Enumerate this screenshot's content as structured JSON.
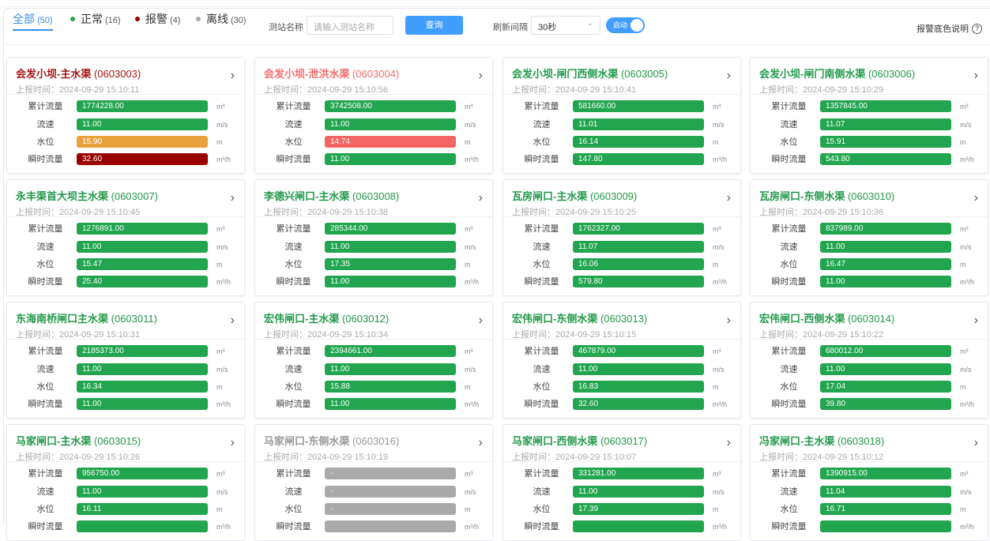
{
  "toolbar": {
    "tabs": [
      {
        "label": "全部",
        "count": "(50)",
        "active": true
      },
      {
        "label": "正常",
        "count": "(16)",
        "dot": "#21a54e"
      },
      {
        "label": "报警",
        "count": "(4)",
        "dot": "#990000"
      },
      {
        "label": "离线",
        "count": "(30)",
        "dot": "#aaaaaa"
      }
    ],
    "station_label": "测站名称",
    "station_placeholder": "请输入测站名称",
    "query_label": "查询",
    "refresh_label": "刷新间隔",
    "refresh_value": "30秒",
    "toggle_label": "启动",
    "toggle_on": true,
    "help_label": "报警底色说明",
    "help_icon": "?"
  },
  "colors": {
    "normal": "#21a54e",
    "warn": "#e9a23b",
    "alarm": "#990000",
    "alarm_light": "#f56464",
    "offline": "#aaaaaa",
    "title_normal": "#21994a",
    "title_alarm": "#a31515",
    "title_alarm_light": "#f56c6c",
    "title_offline": "#999999"
  },
  "labels": [
    "累计流量",
    "流速",
    "水位",
    "瞬时流量"
  ],
  "units": [
    "m³",
    "m/s",
    "m",
    "m³/h"
  ],
  "time_prefix": "上报时间：",
  "cards": [
    {
      "name": "会发小坝-主水渠",
      "code": "(0603003)",
      "time": "2024-09-29 15:10:11",
      "status": "alarm",
      "values": [
        "1774228.00",
        "11.00",
        "15.90",
        "32.60"
      ],
      "states": [
        "normal",
        "normal",
        "warn",
        "alarm"
      ]
    },
    {
      "name": "会发小坝-泄洪水渠",
      "code": "(0603004)",
      "time": "2024-09-29 15:10:56",
      "status": "alarm_light",
      "values": [
        "3742508.00",
        "11.00",
        "14.74",
        "11.00"
      ],
      "states": [
        "normal",
        "normal",
        "alarm_light",
        "normal"
      ]
    },
    {
      "name": "会发小坝-闸门西侧水渠",
      "code": "(0603005)",
      "time": "2024-09-29 15:10:41",
      "status": "normal",
      "values": [
        "581660.00",
        "11.01",
        "16.14",
        "147.80"
      ],
      "states": [
        "normal",
        "normal",
        "normal",
        "normal"
      ]
    },
    {
      "name": "会发小坝-闸门南侧水渠",
      "code": "(0603006)",
      "time": "2024-09-29 15:10:29",
      "status": "normal",
      "values": [
        "1357845.00",
        "11.07",
        "15.91",
        "543.80"
      ],
      "states": [
        "normal",
        "normal",
        "normal",
        "normal"
      ]
    },
    {
      "name": "永丰渠首大坝主水渠",
      "code": "(0603007)",
      "time": "2024-09-29 15:10:45",
      "status": "normal",
      "values": [
        "1276891.00",
        "11.00",
        "15.47",
        "25.40"
      ],
      "states": [
        "normal",
        "normal",
        "normal",
        "normal"
      ]
    },
    {
      "name": "李德兴闸口-主水渠",
      "code": "(0603008)",
      "time": "2024-09-29 15:10:38",
      "status": "normal",
      "values": [
        "285344.00",
        "11.00",
        "17.35",
        "11.00"
      ],
      "states": [
        "normal",
        "normal",
        "normal",
        "normal"
      ]
    },
    {
      "name": "瓦房闸口-主水渠",
      "code": "(0603009)",
      "time": "2024-09-29 15:10:25",
      "status": "normal",
      "values": [
        "1762327.00",
        "11.07",
        "16.06",
        "579.80"
      ],
      "states": [
        "normal",
        "normal",
        "normal",
        "normal"
      ]
    },
    {
      "name": "瓦房闸口-东侧水渠",
      "code": "(0603010)",
      "time": "2024-09-29 15:10:36",
      "status": "normal",
      "values": [
        "837989.00",
        "11.00",
        "16.47",
        "11.00"
      ],
      "states": [
        "normal",
        "normal",
        "normal",
        "normal"
      ]
    },
    {
      "name": "东海南桥闸口主水渠",
      "code": "(0603011)",
      "time": "2024-09-29 15:10:31",
      "status": "normal",
      "values": [
        "2185373.00",
        "11.00",
        "16.34",
        "11.00"
      ],
      "states": [
        "normal",
        "normal",
        "normal",
        "normal"
      ]
    },
    {
      "name": "宏伟闸口-主水渠",
      "code": "(0603012)",
      "time": "2024-09-29 15:10:34",
      "status": "normal",
      "values": [
        "2394661.00",
        "11.00",
        "15.88",
        "11.00"
      ],
      "states": [
        "normal",
        "normal",
        "normal",
        "normal"
      ]
    },
    {
      "name": "宏伟闸口-东侧水渠",
      "code": "(0603013)",
      "time": "2024-09-29 15:10:15",
      "status": "normal",
      "values": [
        "467879.00",
        "11.00",
        "16.83",
        "32.60"
      ],
      "states": [
        "normal",
        "normal",
        "normal",
        "normal"
      ]
    },
    {
      "name": "宏伟闸口-西侧水渠",
      "code": "(0603014)",
      "time": "2024-09-29 15:10:22",
      "status": "normal",
      "values": [
        "680012.00",
        "11.00",
        "17.04",
        "39.80"
      ],
      "states": [
        "normal",
        "normal",
        "normal",
        "normal"
      ]
    },
    {
      "name": "马家闸口-主水渠",
      "code": "(0603015)",
      "time": "2024-09-29 15:10:26",
      "status": "normal",
      "values": [
        "956750.00",
        "11.00",
        "16.11",
        ""
      ],
      "states": [
        "normal",
        "normal",
        "normal",
        "normal"
      ]
    },
    {
      "name": "马家闸口-东侧水渠",
      "code": "(0603016)",
      "time": "2024-09-29 15:10:19",
      "status": "offline",
      "values": [
        "-",
        "-",
        "-",
        ""
      ],
      "states": [
        "offline",
        "offline",
        "offline",
        "offline"
      ]
    },
    {
      "name": "马家闸口-西侧水渠",
      "code": "(0603017)",
      "time": "2024-09-29 15:10:07",
      "status": "normal",
      "values": [
        "331281.00",
        "11.00",
        "17.39",
        ""
      ],
      "states": [
        "normal",
        "normal",
        "normal",
        "normal"
      ]
    },
    {
      "name": "冯家闸口-主水渠",
      "code": "(0603018)",
      "time": "2024-09-29 15:10:12",
      "status": "normal",
      "values": [
        "1390915.00",
        "11.04",
        "16.71",
        ""
      ],
      "states": [
        "normal",
        "normal",
        "normal",
        "normal"
      ]
    }
  ]
}
